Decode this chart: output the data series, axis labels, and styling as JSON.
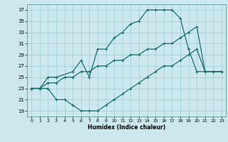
{
  "xlabel": "Humidex (Indice chaleur)",
  "bg_color": "#cce8ee",
  "grid_color": "#99ccd4",
  "line_color": "#1a6e6a",
  "xlim": [
    -0.5,
    23.5
  ],
  "ylim": [
    18.0,
    38.0
  ],
  "xticks": [
    0,
    1,
    2,
    3,
    4,
    5,
    6,
    7,
    8,
    9,
    10,
    11,
    12,
    13,
    14,
    15,
    16,
    17,
    18,
    19,
    20,
    21,
    22,
    23
  ],
  "yticks": [
    19,
    21,
    23,
    25,
    27,
    29,
    31,
    33,
    35,
    37
  ],
  "line1_x": [
    0,
    1,
    2,
    3,
    5,
    6,
    7,
    8,
    9,
    10,
    11,
    12,
    13,
    14,
    15,
    16,
    17,
    18,
    19,
    20,
    21,
    22,
    23
  ],
  "line1_y": [
    23,
    23,
    25,
    25,
    26,
    28,
    25,
    30,
    30,
    32,
    33,
    34.5,
    35,
    37,
    37,
    37,
    37,
    35.5,
    30,
    26,
    26,
    26,
    26
  ],
  "line2_x": [
    0,
    1,
    2,
    3,
    4,
    5,
    6,
    7,
    8,
    9,
    10,
    11,
    12,
    13,
    14,
    15,
    16,
    17,
    18,
    19,
    20,
    21,
    22,
    23
  ],
  "line2_y": [
    23,
    23,
    23,
    21,
    21,
    20,
    19,
    19,
    19,
    20,
    21,
    22,
    23,
    24,
    25,
    26,
    27,
    27,
    28,
    29,
    30,
    26,
    26,
    26
  ],
  "line3_x": [
    0,
    1,
    2,
    3,
    4,
    5,
    6,
    7,
    8,
    9,
    10,
    11,
    12,
    13,
    14,
    15,
    16,
    17,
    18,
    19,
    20,
    21,
    22,
    23
  ],
  "line3_y": [
    23,
    23,
    24,
    24,
    25,
    25,
    26,
    26,
    27,
    27,
    28,
    28,
    29,
    29,
    30,
    30,
    31,
    31,
    32,
    33,
    34,
    26,
    26,
    26
  ]
}
